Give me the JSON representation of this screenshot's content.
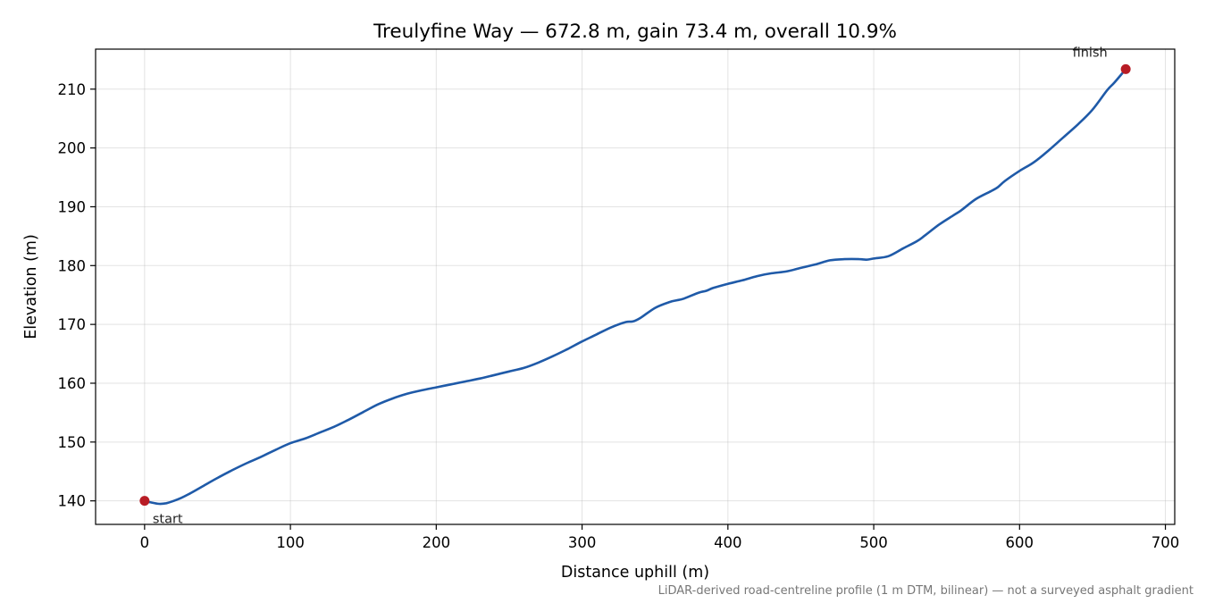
{
  "chart_data": {
    "type": "line",
    "title": "Treulyfine Way — 672.8 m, gain 73.4 m, overall 10.9%",
    "xlabel": "Distance uphill (m)",
    "ylabel": "Elevation (m)",
    "footnote": "LiDAR-derived road-centreline profile (1 m DTM, bilinear) — not a surveyed asphalt gradient",
    "xlim": [
      -33.6,
      706.4
    ],
    "ylim": [
      136.0,
      216.8
    ],
    "xticks": [
      0,
      100,
      200,
      300,
      400,
      500,
      600,
      700
    ],
    "yticks": [
      140,
      150,
      160,
      170,
      180,
      190,
      200,
      210
    ],
    "grid": true,
    "line_color": "#1f5aa8",
    "marker_color": "#b81c25",
    "series": [
      {
        "x": [
          0,
          5,
          10,
          15,
          20,
          25,
          30,
          40,
          50,
          60,
          70,
          80,
          90,
          100,
          110,
          120,
          130,
          140,
          150,
          160,
          170,
          180,
          190,
          200,
          210,
          220,
          230,
          240,
          250,
          260,
          270,
          280,
          290,
          300,
          310,
          320,
          330,
          335,
          340,
          350,
          360,
          365,
          370,
          380,
          385,
          390,
          400,
          410,
          420,
          430,
          440,
          450,
          460,
          470,
          480,
          490,
          495,
          500,
          510,
          520,
          530,
          535,
          545,
          555,
          560,
          570,
          580,
          585,
          590,
          600,
          610,
          620,
          630,
          640,
          650,
          660,
          665,
          672.8
        ],
        "y": [
          140.0,
          139.7,
          139.5,
          139.6,
          140.0,
          140.5,
          141.1,
          142.5,
          143.9,
          145.2,
          146.4,
          147.5,
          148.7,
          149.8,
          150.6,
          151.6,
          152.6,
          153.8,
          155.1,
          156.4,
          157.4,
          158.2,
          158.8,
          159.3,
          159.8,
          160.3,
          160.8,
          161.4,
          162.0,
          162.6,
          163.5,
          164.6,
          165.8,
          167.1,
          168.3,
          169.5,
          170.4,
          170.5,
          171.1,
          172.8,
          173.8,
          174.1,
          174.4,
          175.4,
          175.7,
          176.2,
          176.9,
          177.5,
          178.2,
          178.7,
          179.0,
          179.6,
          180.2,
          180.9,
          181.1,
          181.1,
          181.0,
          181.2,
          181.6,
          182.9,
          184.2,
          185.1,
          187.0,
          188.6,
          189.4,
          191.3,
          192.6,
          193.3,
          194.4,
          196.1,
          197.6,
          199.6,
          201.8,
          204.0,
          206.5,
          209.8,
          211.1,
          213.4
        ]
      }
    ],
    "markers": [
      {
        "label": "start",
        "x": 0,
        "y": 140.0
      },
      {
        "label": "finish",
        "x": 672.8,
        "y": 213.4
      }
    ]
  }
}
